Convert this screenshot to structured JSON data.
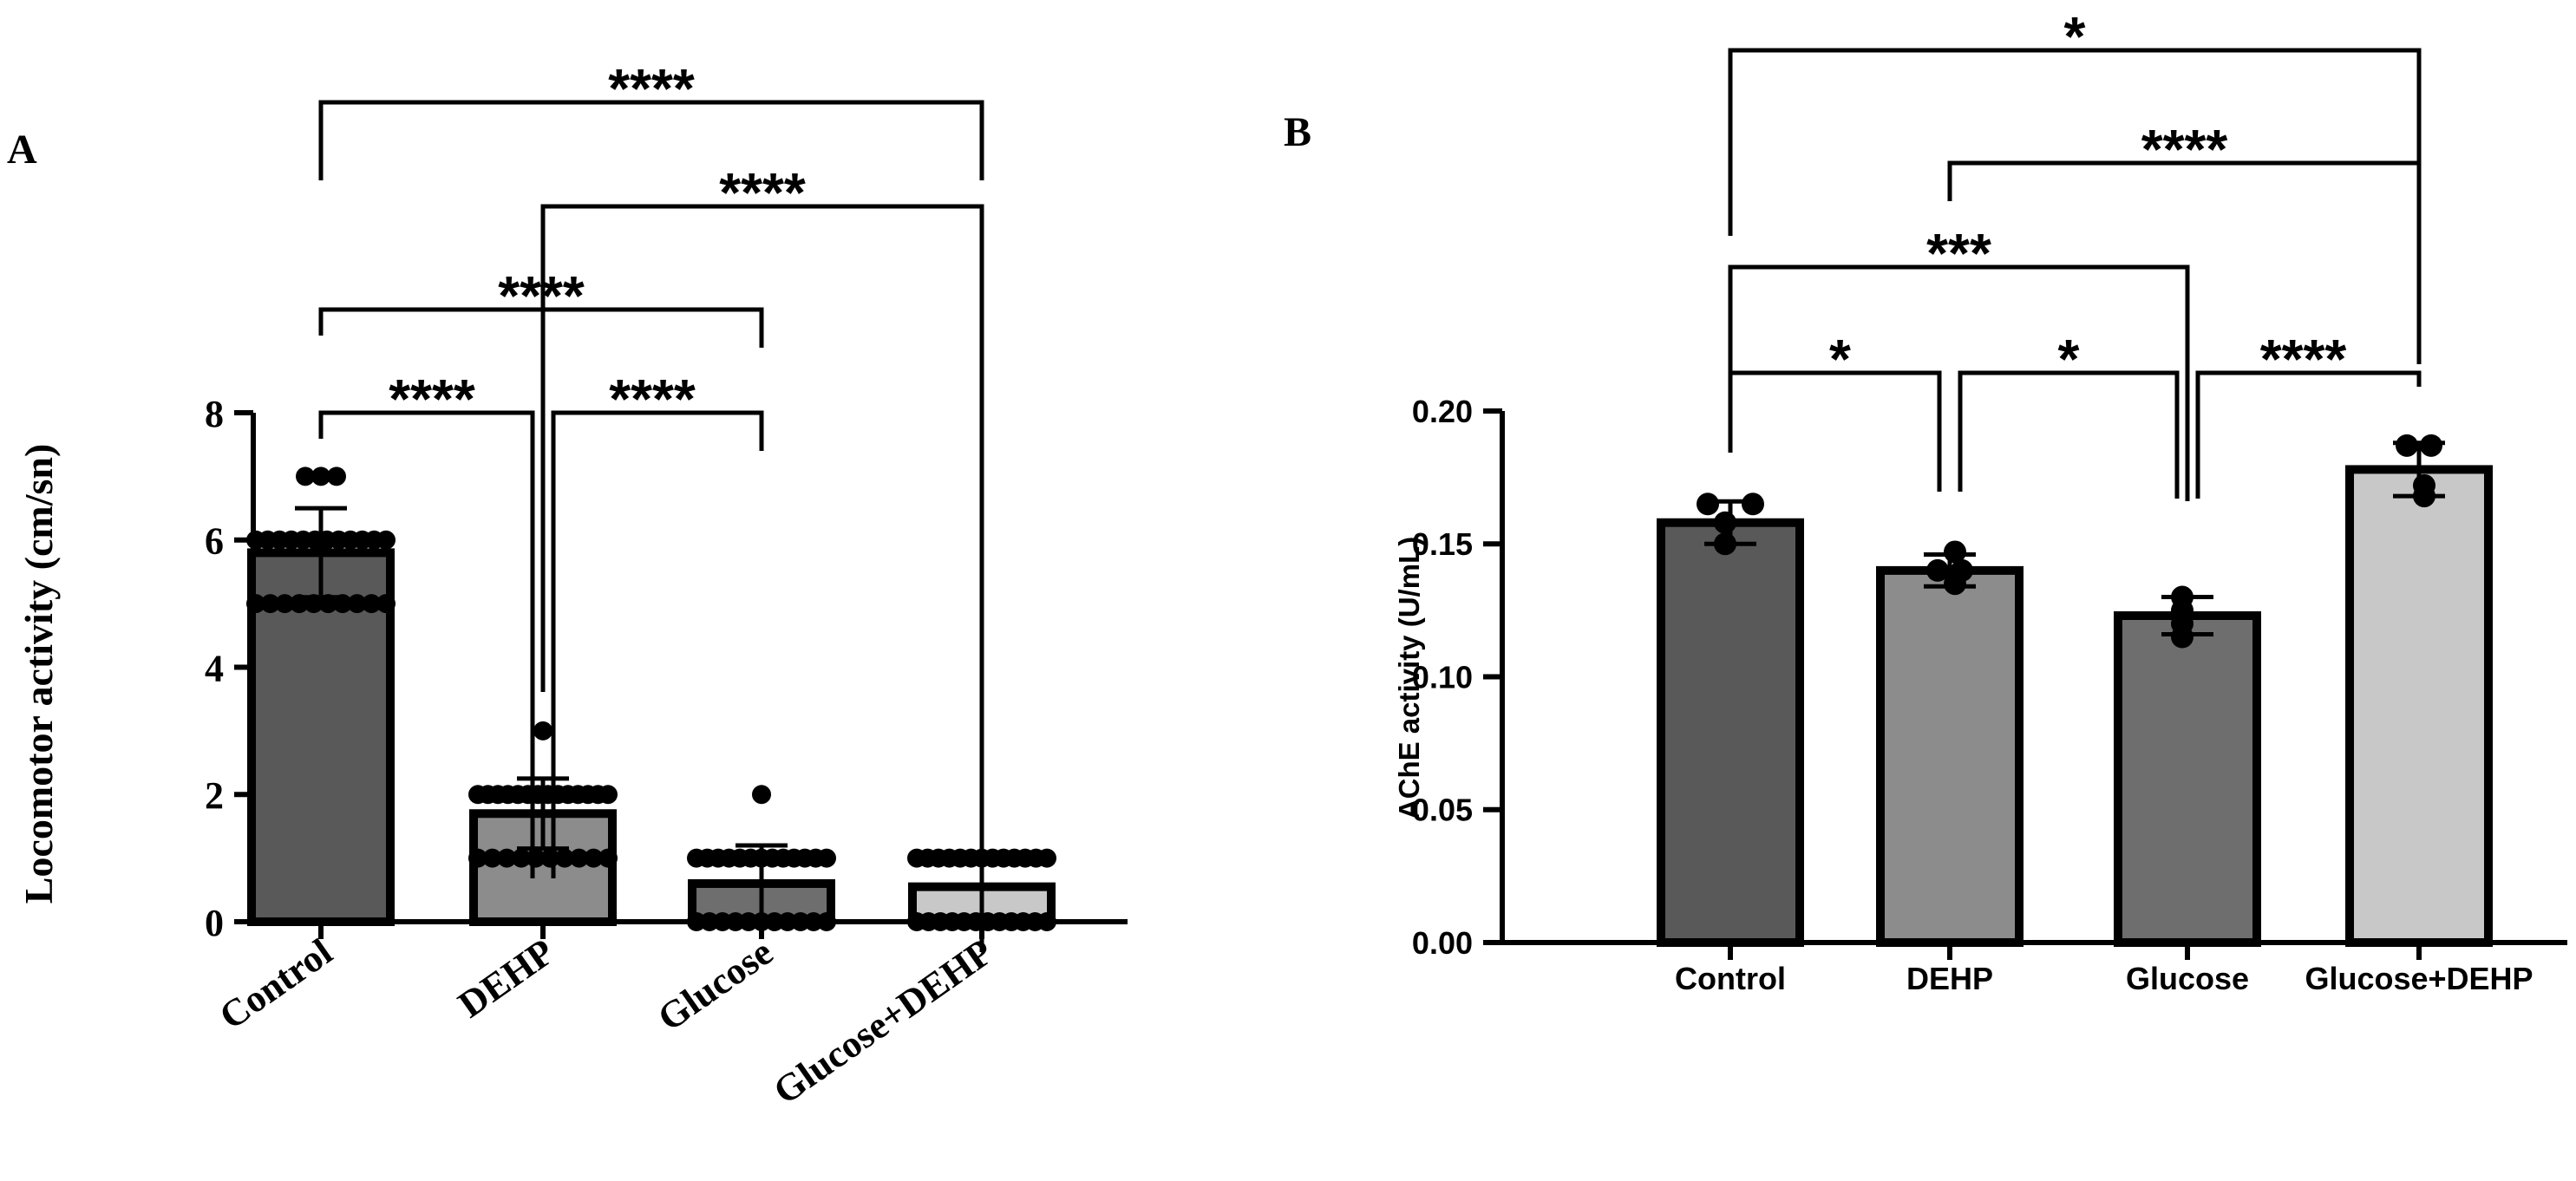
{
  "chart_data": [
    {
      "panel_label": "A",
      "type": "bar",
      "ylabel": "Locomotor activity (cm/sn)",
      "xlabel": "",
      "ylim": [
        0,
        8
      ],
      "yticks": [
        "0",
        "2",
        "4",
        "6",
        "8"
      ],
      "categories": [
        "Control",
        "DEHP",
        "Glucose",
        "Glucose+DEHP"
      ],
      "values": [
        5.8,
        1.7,
        0.6,
        0.55
      ],
      "sd": [
        0.7,
        0.55,
        0.6,
        0.5
      ],
      "bar_colors": [
        "#595959",
        "#8c8c8c",
        "#6e6e6e",
        "#c8c8c8"
      ],
      "points": [
        [
          5,
          5,
          5,
          5,
          5,
          5,
          5,
          5,
          5,
          5,
          6,
          6,
          6,
          6,
          6,
          6,
          6,
          6,
          6,
          6,
          6,
          6,
          7,
          7,
          7
        ],
        [
          1,
          1,
          1,
          1,
          1,
          1,
          1,
          1,
          1,
          1,
          2,
          2,
          2,
          2,
          2,
          2,
          2,
          2,
          2,
          2,
          2,
          2,
          2,
          2,
          3
        ],
        [
          0,
          0,
          0,
          0,
          0,
          0,
          0,
          0,
          0,
          0,
          0,
          1,
          1,
          1,
          1,
          1,
          1,
          1,
          1,
          1,
          1,
          1,
          1,
          1,
          2
        ],
        [
          0,
          0,
          0,
          0,
          0,
          0,
          0,
          0,
          0,
          0,
          0,
          0,
          1,
          1,
          1,
          1,
          1,
          1,
          1,
          1,
          1,
          1,
          1,
          1,
          1
        ]
      ],
      "comparisons": [
        {
          "a": 0,
          "b": 3,
          "label": "****"
        },
        {
          "a": 1,
          "b": 3,
          "label": "****"
        },
        {
          "a": 0,
          "b": 2,
          "label": "****"
        },
        {
          "a": 0,
          "b": 1,
          "label": "****"
        },
        {
          "a": 1,
          "b": 2,
          "label": "****"
        }
      ]
    },
    {
      "panel_label": "B",
      "type": "bar",
      "ylabel": "AChE activity (U/mL)",
      "xlabel": "",
      "ylim": [
        0,
        0.2
      ],
      "yticks": [
        "0.00",
        "0.05",
        "0.10",
        "0.15",
        "0.20"
      ],
      "categories": [
        "Control",
        "DEHP",
        "Glucose",
        "Glucose+DEHP"
      ],
      "values": [
        0.158,
        0.14,
        0.123,
        0.178
      ],
      "sd": [
        0.008,
        0.006,
        0.007,
        0.01
      ],
      "bar_colors": [
        "#595959",
        "#8c8c8c",
        "#6e6e6e",
        "#c8c8c8"
      ],
      "points": [
        [
          0.15,
          0.158,
          0.165,
          0.165
        ],
        [
          0.135,
          0.14,
          0.14,
          0.147
        ],
        [
          0.115,
          0.12,
          0.125,
          0.13
        ],
        [
          0.168,
          0.172,
          0.187,
          0.187
        ]
      ],
      "comparisons": [
        {
          "a": 0,
          "b": 3,
          "label": "*"
        },
        {
          "a": 1,
          "b": 3,
          "label": "****"
        },
        {
          "a": 0,
          "b": 2,
          "label": "***"
        },
        {
          "a": 0,
          "b": 1,
          "label": "*"
        },
        {
          "a": 1,
          "b": 2,
          "label": "*"
        },
        {
          "a": 2,
          "b": 3,
          "label": "****"
        }
      ]
    }
  ]
}
